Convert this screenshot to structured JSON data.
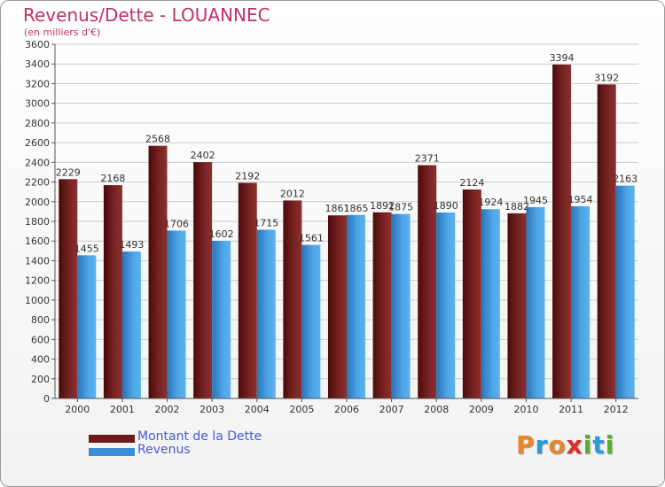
{
  "chart_data": {
    "type": "bar",
    "title": "Revenus/Dette - LOUANNEC",
    "subtitle": "(en milliers d'€)",
    "categories": [
      "2000",
      "2001",
      "2002",
      "2003",
      "2004",
      "2005",
      "2006",
      "2007",
      "2008",
      "2009",
      "2010",
      "2011",
      "2012"
    ],
    "series": [
      {
        "name": "Montant de la Dette",
        "color": "#6e1a1a",
        "values": [
          2229,
          2168,
          2568,
          2402,
          2192,
          2012,
          1861,
          1892,
          2371,
          2124,
          1882,
          3394,
          3192
        ]
      },
      {
        "name": "Revenus",
        "color": "#3a8fd6",
        "values": [
          1455,
          1493,
          1706,
          1602,
          1715,
          1561,
          1865,
          1875,
          1890,
          1924,
          1945,
          1954,
          2163
        ]
      }
    ],
    "ylim": [
      0,
      3600
    ],
    "ystep": 200,
    "grid": true,
    "legend": "bottom-left"
  },
  "logo": {
    "letters": [
      "P",
      "r",
      "o",
      "x",
      "i",
      "t",
      "i"
    ],
    "colors": [
      "#e8862a",
      "#2c9ad8",
      "#e8862a",
      "#d9302b",
      "#58b030",
      "#2c9ad8",
      "#58b030"
    ]
  }
}
